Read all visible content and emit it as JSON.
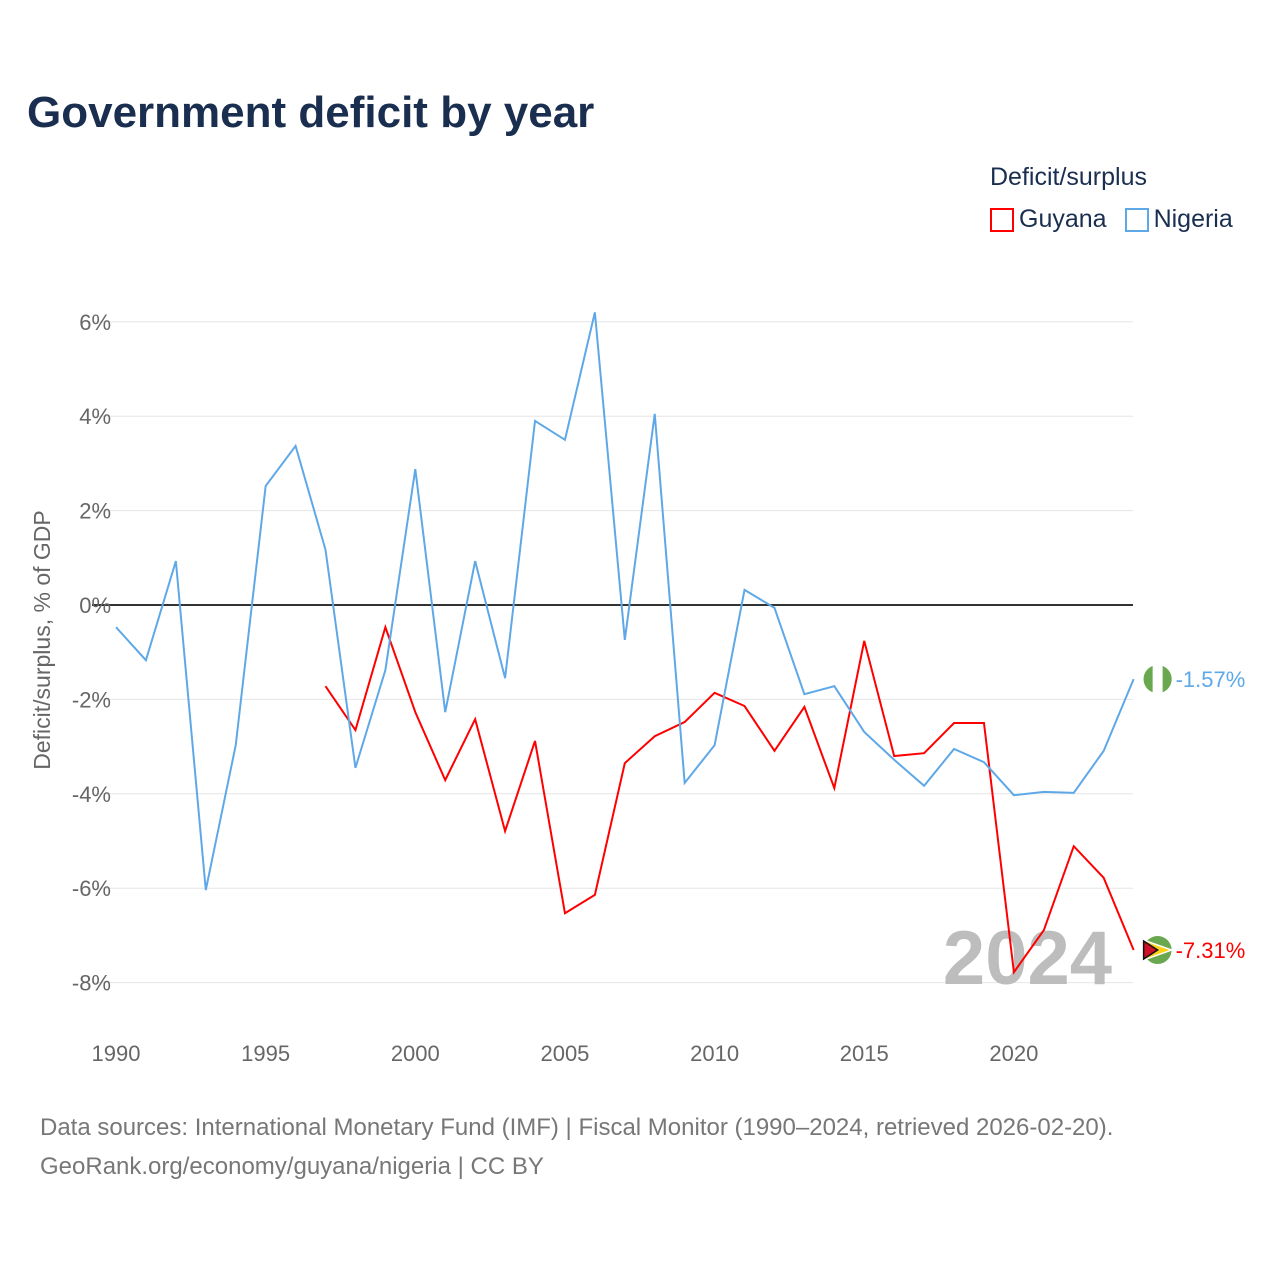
{
  "chart_data": {
    "type": "line",
    "title": "Government deficit by year",
    "ylabel": "Deficit/surplus, % of GDP",
    "xlabel": "",
    "legend_title": "Deficit/surplus",
    "legend_placement": "top-right",
    "ylim": [
      -9,
      6.6
    ],
    "xlim": [
      1990,
      2024
    ],
    "yticks": [
      6,
      4,
      2,
      0,
      -2,
      -4,
      -6,
      -8
    ],
    "ytick_labels": [
      "6%",
      "4%",
      "2%",
      "0%",
      "-2%",
      "-4%",
      "-6%",
      "-8%"
    ],
    "xticks": [
      1990,
      1995,
      2000,
      2005,
      2010,
      2015,
      2020
    ],
    "xtick_labels": [
      "1990",
      "1995",
      "2000",
      "2005",
      "2010",
      "2015",
      "2020"
    ],
    "year_label": "2024",
    "grid": true,
    "series": [
      {
        "name": "Guyana",
        "color": "#ff0000",
        "end_label": "-7.31%",
        "x": [
          1997,
          1998,
          1999,
          2000,
          2001,
          2002,
          2003,
          2004,
          2005,
          2006,
          2007,
          2008,
          2009,
          2010,
          2011,
          2012,
          2013,
          2014,
          2015,
          2016,
          2017,
          2018,
          2019,
          2020,
          2021,
          2022,
          2023,
          2024
        ],
        "values": [
          -1.72,
          -2.65,
          -0.47,
          -2.27,
          -3.71,
          -2.42,
          -4.79,
          -2.88,
          -6.53,
          -6.14,
          -3.35,
          -2.78,
          -2.48,
          -1.86,
          -2.14,
          -3.09,
          -2.16,
          -3.88,
          -0.76,
          -3.2,
          -3.14,
          -2.5,
          -2.5,
          -7.78,
          -6.89,
          -5.11,
          -5.78,
          -7.31
        ]
      },
      {
        "name": "Nigeria",
        "color": "#5fa8e8",
        "end_label": "-1.57%",
        "x": [
          1990,
          1991,
          1992,
          1993,
          1994,
          1995,
          1996,
          1997,
          1998,
          1999,
          2000,
          2001,
          2002,
          2003,
          2004,
          2005,
          2006,
          2007,
          2008,
          2009,
          2010,
          2011,
          2012,
          2013,
          2014,
          2015,
          2016,
          2017,
          2018,
          2019,
          2020,
          2021,
          2022,
          2023,
          2024
        ],
        "values": [
          -0.47,
          -1.17,
          0.93,
          -6.04,
          -2.97,
          2.52,
          3.37,
          1.17,
          -3.45,
          -1.38,
          2.88,
          -2.27,
          0.93,
          -1.55,
          3.9,
          3.5,
          6.2,
          -0.74,
          4.05,
          -3.77,
          -2.97,
          0.32,
          -0.06,
          -1.89,
          -1.72,
          -2.69,
          -3.28,
          -3.83,
          -3.05,
          -3.33,
          -4.03,
          -3.96,
          -3.98,
          -3.09,
          -1.57
        ]
      }
    ]
  },
  "source": {
    "line1": "Data sources: International Monetary Fund (IMF) | Fiscal Monitor (1990–2024, retrieved 2026-02-20).",
    "line2": "GeoRank.org/economy/guyana/nigeria | CC BY"
  }
}
